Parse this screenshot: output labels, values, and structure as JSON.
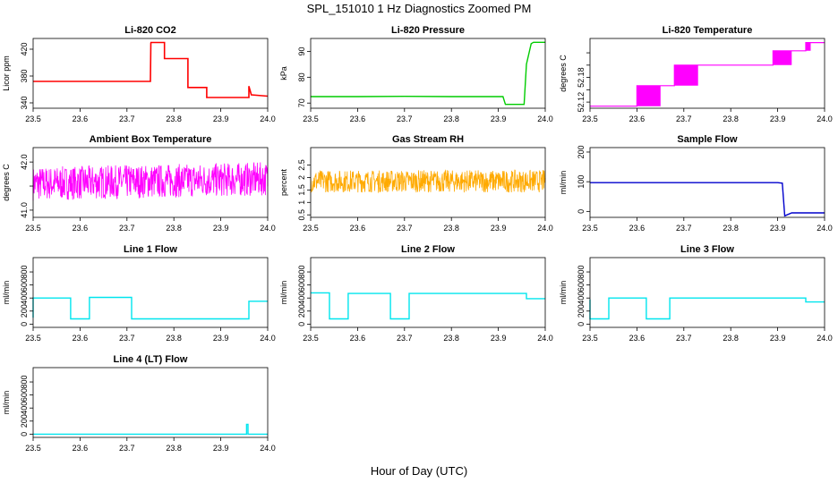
{
  "figure": {
    "title": "SPL_151010  1 Hz Diagnostics Zoomed PM",
    "xlabel": "Hour of Day (UTC)"
  },
  "chart_data": [
    {
      "type": "line",
      "title": "Li-820 CO2",
      "ylabel": "Licor ppm",
      "color": "#ff0000",
      "xlim": [
        23.5,
        24.0
      ],
      "ylim": [
        332,
        436
      ],
      "xticks": [
        "23.5",
        "23.6",
        "23.7",
        "23.8",
        "23.9",
        "24.0"
      ],
      "yticks": [
        340,
        380,
        420
      ],
      "style": "steps",
      "x": [
        23.5,
        23.7,
        23.75,
        23.751,
        23.75,
        23.78,
        23.78,
        23.785,
        23.785,
        23.83,
        23.83,
        23.835,
        23.835,
        23.87,
        23.87,
        23.875,
        23.875,
        23.96,
        23.96,
        23.965,
        23.965,
        24.0
      ],
      "y": [
        372,
        372,
        372,
        430,
        430,
        430,
        406,
        406,
        406,
        406,
        363,
        363,
        363,
        363,
        348,
        348,
        348,
        348,
        365,
        352,
        352,
        350
      ]
    },
    {
      "type": "line",
      "title": "Li-820 Pressure",
      "ylabel": "kPa",
      "color": "#00cc00",
      "xlim": [
        23.5,
        24.0
      ],
      "ylim": [
        68,
        95
      ],
      "xticks": [
        "23.5",
        "23.6",
        "23.7",
        "23.8",
        "23.9",
        "24.0"
      ],
      "yticks": [
        70,
        80,
        90
      ],
      "style": "line",
      "x": [
        23.5,
        23.6,
        23.7,
        23.8,
        23.91,
        23.915,
        23.955,
        23.96,
        23.97,
        23.975,
        24.0
      ],
      "y": [
        72.5,
        72.5,
        72.6,
        72.5,
        72.5,
        69.5,
        69.5,
        85,
        93,
        93.5,
        93.5
      ]
    },
    {
      "type": "line",
      "title": "Li-820 Temperature",
      "ylabel": "degrees C",
      "color": "#ff00ff",
      "xlim": [
        23.5,
        24.0
      ],
      "ylim": [
        52.09,
        52.43
      ],
      "xticks": [
        "23.5",
        "23.6",
        "23.7",
        "23.8",
        "23.9",
        "24.0"
      ],
      "yticks": [
        52.12,
        52.18,
        52.24,
        52.3,
        52.36
      ],
      "ytick_labels": [
        "52.12",
        "",
        "52.18",
        "",
        ""
      ],
      "style": "noisy-steps",
      "x": [
        23.5,
        23.6,
        23.6,
        23.68,
        23.68,
        23.89,
        23.89,
        23.96,
        23.96,
        24.0
      ],
      "y": [
        52.1,
        52.1,
        52.2,
        52.2,
        52.3,
        52.3,
        52.37,
        52.37,
        52.41,
        52.41
      ]
    },
    {
      "type": "line",
      "title": "Ambient Box Temperature",
      "ylabel": "degrees C",
      "color": "#ff00ff",
      "xlim": [
        23.5,
        24.0
      ],
      "ylim": [
        40.85,
        42.3
      ],
      "xticks": [
        "23.5",
        "23.6",
        "23.7",
        "23.8",
        "23.9",
        "24.0"
      ],
      "yticks": [
        41.0,
        41.5,
        42.0
      ],
      "ytick_labels": [
        "41.0",
        "",
        "42.0"
      ],
      "style": "noise",
      "x": [
        23.5,
        24.0
      ],
      "y": [
        41.55,
        41.65
      ],
      "noise": 0.35
    },
    {
      "type": "line",
      "title": "Gas Stream RH",
      "ylabel": "percent",
      "color": "#ffaa00",
      "xlim": [
        23.5,
        24.0
      ],
      "ylim": [
        0.4,
        3.2
      ],
      "xticks": [
        "23.5",
        "23.6",
        "23.7",
        "23.8",
        "23.9",
        "24.0"
      ],
      "yticks": [
        0.5,
        1.0,
        1.5,
        2.0,
        2.5
      ],
      "style": "noise",
      "x": [
        23.5,
        24.0
      ],
      "y": [
        1.85,
        1.85
      ],
      "noise": 0.45
    },
    {
      "type": "line",
      "title": "Sample Flow",
      "ylabel": "ml/min",
      "color": "#0000cc",
      "xlim": [
        23.5,
        24.0
      ],
      "ylim": [
        -20,
        215
      ],
      "xticks": [
        "23.5",
        "23.6",
        "23.7",
        "23.8",
        "23.9",
        "24.0"
      ],
      "yticks": [
        0,
        100,
        200
      ],
      "style": "line",
      "x": [
        23.5,
        23.9,
        23.91,
        23.915,
        23.93,
        24.0
      ],
      "y": [
        97,
        97,
        95,
        -15,
        -5,
        -5
      ]
    },
    {
      "type": "line",
      "title": "Line 1 Flow",
      "ylabel": "ml/min",
      "color": "#00e5ee",
      "xlim": [
        23.5,
        24.0
      ],
      "ylim": [
        -50,
        1020
      ],
      "xticks": [
        "23.5",
        "23.6",
        "23.7",
        "23.8",
        "23.9",
        "24.0"
      ],
      "yticks": [
        0,
        200,
        400,
        600,
        800
      ],
      "style": "line",
      "x": [
        23.5,
        23.5,
        23.58,
        23.58,
        23.62,
        23.62,
        23.71,
        23.71,
        23.96,
        23.96,
        24.0
      ],
      "y": [
        100,
        400,
        400,
        80,
        80,
        410,
        410,
        80,
        80,
        350,
        350
      ]
    },
    {
      "type": "line",
      "title": "Line 2 Flow",
      "ylabel": "ml/min",
      "color": "#00e5ee",
      "xlim": [
        23.5,
        24.0
      ],
      "ylim": [
        -50,
        1020
      ],
      "xticks": [
        "23.5",
        "23.6",
        "23.7",
        "23.8",
        "23.9",
        "24.0"
      ],
      "yticks": [
        0,
        200,
        400,
        600,
        800
      ],
      "style": "line",
      "x": [
        23.5,
        23.54,
        23.54,
        23.58,
        23.58,
        23.67,
        23.67,
        23.71,
        23.71,
        23.96,
        23.96,
        24.0
      ],
      "y": [
        480,
        480,
        80,
        80,
        470,
        470,
        80,
        80,
        470,
        470,
        390,
        390
      ]
    },
    {
      "type": "line",
      "title": "Line 3 Flow",
      "ylabel": "ml/min",
      "color": "#00e5ee",
      "xlim": [
        23.5,
        24.0
      ],
      "ylim": [
        -50,
        1020
      ],
      "xticks": [
        "23.5",
        "23.6",
        "23.7",
        "23.8",
        "23.9",
        "24.0"
      ],
      "yticks": [
        0,
        200,
        400,
        600,
        800
      ],
      "style": "line",
      "x": [
        23.5,
        23.5,
        23.54,
        23.54,
        23.62,
        23.62,
        23.67,
        23.67,
        23.96,
        23.96,
        24.0
      ],
      "y": [
        380,
        80,
        80,
        400,
        400,
        80,
        80,
        400,
        400,
        340,
        340
      ]
    },
    {
      "type": "line",
      "title": "Line 4 (LT) Flow",
      "ylabel": "ml/min",
      "color": "#00e5ee",
      "xlim": [
        23.5,
        24.0
      ],
      "ylim": [
        -50,
        1020
      ],
      "xticks": [
        "23.5",
        "23.6",
        "23.7",
        "23.8",
        "23.9",
        "24.0"
      ],
      "yticks": [
        0,
        200,
        400,
        600,
        800
      ],
      "style": "line",
      "x": [
        23.5,
        23.955,
        23.955,
        23.958,
        23.958,
        24.0
      ],
      "y": [
        0,
        0,
        150,
        150,
        0,
        0
      ]
    }
  ]
}
